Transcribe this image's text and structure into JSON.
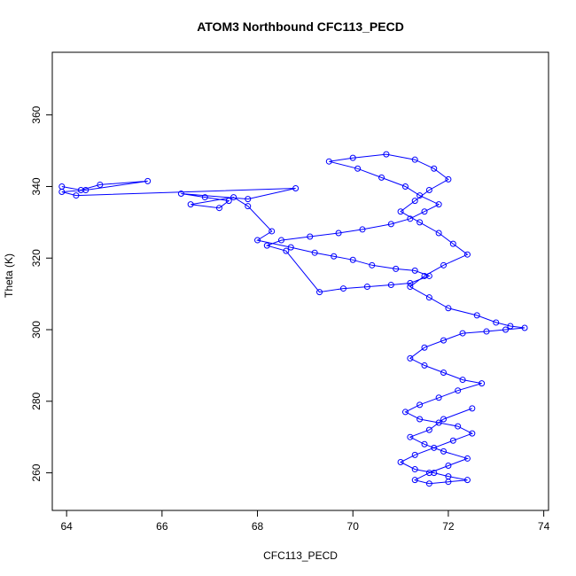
{
  "chart_data": {
    "type": "scatter",
    "title": "ATOM3 Northbound CFC113_PECD",
    "xlabel": "CFC113_PECD",
    "ylabel": "Theta (K)",
    "xlim": [
      63.7,
      74.1
    ],
    "ylim": [
      249.5,
      377.5
    ],
    "xticks": [
      64,
      66,
      68,
      70,
      72,
      74
    ],
    "yticks": [
      260,
      280,
      300,
      320,
      340,
      360
    ],
    "grid": false,
    "legend": "none",
    "marker": "open-circle",
    "connected": true,
    "color": "#0000ff",
    "series": [
      {
        "x": [
          63.9,
          64.3,
          64.7,
          65.7,
          64.4,
          63.9,
          64.2,
          68.8,
          67.8,
          66.4,
          66.9,
          67.4,
          67.2,
          66.6,
          67.5,
          67.8,
          68.3,
          68.0,
          68.7,
          69.2,
          69.6,
          70.0,
          70.4,
          70.9,
          71.3,
          71.6,
          71.2,
          70.8,
          70.3,
          69.8,
          69.3,
          68.6,
          68.2,
          68.5,
          69.1,
          69.7,
          70.2,
          70.8,
          71.2,
          71.5,
          71.8,
          71.4,
          71.1,
          70.6,
          70.1,
          69.5,
          70.0,
          70.7,
          71.3,
          71.7,
          72.0,
          71.6,
          71.3,
          71.0,
          71.4,
          71.8,
          72.1,
          72.4,
          71.9,
          71.5,
          71.2,
          71.6,
          72.0,
          72.6,
          73.0,
          73.3,
          73.6,
          73.2,
          72.8,
          72.3,
          71.9,
          71.5,
          71.2,
          71.5,
          71.9,
          72.3,
          72.7,
          72.2,
          71.8,
          71.4,
          71.1,
          71.4,
          71.8,
          72.2,
          72.5,
          72.1,
          71.7,
          71.3,
          71.0,
          71.3,
          71.7,
          72.0,
          72.4,
          72.0,
          71.6,
          71.3,
          71.6,
          72.0,
          72.4,
          71.9,
          71.5,
          71.2,
          71.6,
          71.9,
          72.5
        ],
        "y": [
          340.0,
          339.0,
          340.5,
          341.5,
          339.0,
          338.5,
          337.5,
          339.5,
          336.5,
          338.0,
          337.0,
          336.0,
          334.0,
          335.0,
          337.0,
          334.5,
          327.5,
          325.0,
          323.0,
          321.5,
          320.5,
          319.5,
          318.0,
          317.0,
          316.5,
          315.0,
          313.0,
          312.5,
          312.0,
          311.5,
          310.5,
          322.0,
          323.5,
          325.0,
          326.0,
          327.0,
          328.0,
          329.5,
          331.0,
          333.0,
          335.0,
          337.5,
          340.0,
          342.5,
          345.0,
          347.0,
          348.0,
          349.0,
          347.5,
          345.0,
          342.0,
          339.0,
          336.0,
          333.0,
          330.0,
          327.0,
          324.0,
          321.0,
          318.0,
          315.0,
          312.0,
          309.0,
          306.0,
          304.0,
          302.0,
          301.0,
          300.5,
          300.0,
          299.5,
          299.0,
          297.0,
          295.0,
          292.0,
          290.0,
          288.0,
          286.0,
          285.0,
          283.0,
          281.0,
          279.0,
          277.0,
          275.0,
          274.0,
          273.0,
          271.0,
          269.0,
          267.0,
          265.0,
          263.0,
          261.0,
          260.0,
          259.0,
          258.0,
          257.5,
          257.0,
          258.0,
          260.0,
          262.0,
          264.0,
          266.0,
          268.0,
          270.0,
          272.0,
          275.0,
          278.0
        ]
      }
    ]
  }
}
